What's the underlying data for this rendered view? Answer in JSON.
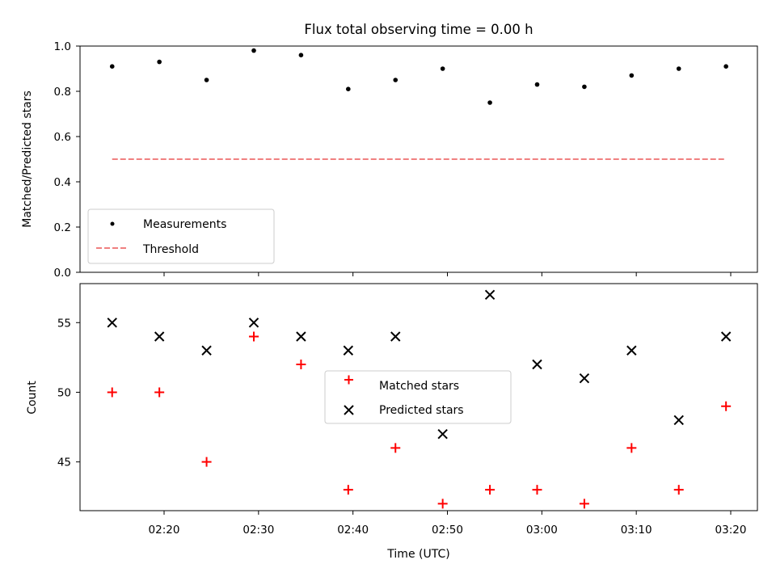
{
  "chart_data": [
    {
      "type": "scatter",
      "title": "Flux total observing time = 0.00 h",
      "xlabel": "",
      "ylabel": "Matched/Predicted stars",
      "ylim": [
        0.0,
        1.0
      ],
      "yticks": [
        "0.0",
        "0.2",
        "0.4",
        "0.6",
        "0.8",
        "1.0"
      ],
      "legend_position": "lower-left",
      "series": [
        {
          "name": "Measurements",
          "color": "#000000",
          "marker": "dot",
          "x": [
            "02:14:30",
            "02:19:30",
            "02:24:30",
            "02:29:30",
            "02:34:30",
            "02:39:30",
            "02:44:30",
            "02:49:30",
            "02:54:30",
            "02:59:30",
            "03:04:30",
            "03:09:30",
            "03:14:30",
            "03:19:30"
          ],
          "y": [
            0.91,
            0.93,
            0.85,
            0.98,
            0.96,
            0.81,
            0.85,
            0.9,
            0.75,
            0.83,
            0.82,
            0.87,
            0.9,
            0.91
          ]
        },
        {
          "name": "Threshold",
          "color": "#f08080",
          "style": "dashed",
          "x": [
            "02:14:30",
            "03:19:30"
          ],
          "y": [
            0.5,
            0.5
          ]
        }
      ]
    },
    {
      "type": "scatter",
      "title": "",
      "xlabel": "Time (UTC)",
      "ylabel": "Count",
      "ylim": [
        41.5,
        57.8
      ],
      "yticks": [
        "45",
        "50",
        "55"
      ],
      "xticks": [
        "02:20",
        "02:30",
        "02:40",
        "02:50",
        "03:00",
        "03:10",
        "03:20"
      ],
      "legend_position": "center",
      "series": [
        {
          "name": "Matched stars",
          "color": "#ff0000",
          "marker": "plus",
          "x": [
            "02:14:30",
            "02:19:30",
            "02:24:30",
            "02:29:30",
            "02:34:30",
            "02:39:30",
            "02:44:30",
            "02:49:30",
            "02:54:30",
            "02:59:30",
            "03:04:30",
            "03:09:30",
            "03:14:30",
            "03:19:30"
          ],
          "y": [
            50,
            50,
            45,
            54,
            52,
            43,
            46,
            42,
            43,
            43,
            42,
            46,
            43,
            49
          ]
        },
        {
          "name": "Predicted stars",
          "color": "#000000",
          "marker": "x",
          "x": [
            "02:14:30",
            "02:19:30",
            "02:24:30",
            "02:29:30",
            "02:34:30",
            "02:39:30",
            "02:44:30",
            "02:49:30",
            "02:54:30",
            "02:59:30",
            "03:04:30",
            "03:09:30",
            "03:14:30",
            "03:19:30"
          ],
          "y": [
            55,
            54,
            53,
            55,
            54,
            53,
            54,
            47,
            57,
            52,
            51,
            53,
            48,
            54
          ]
        }
      ]
    }
  ]
}
